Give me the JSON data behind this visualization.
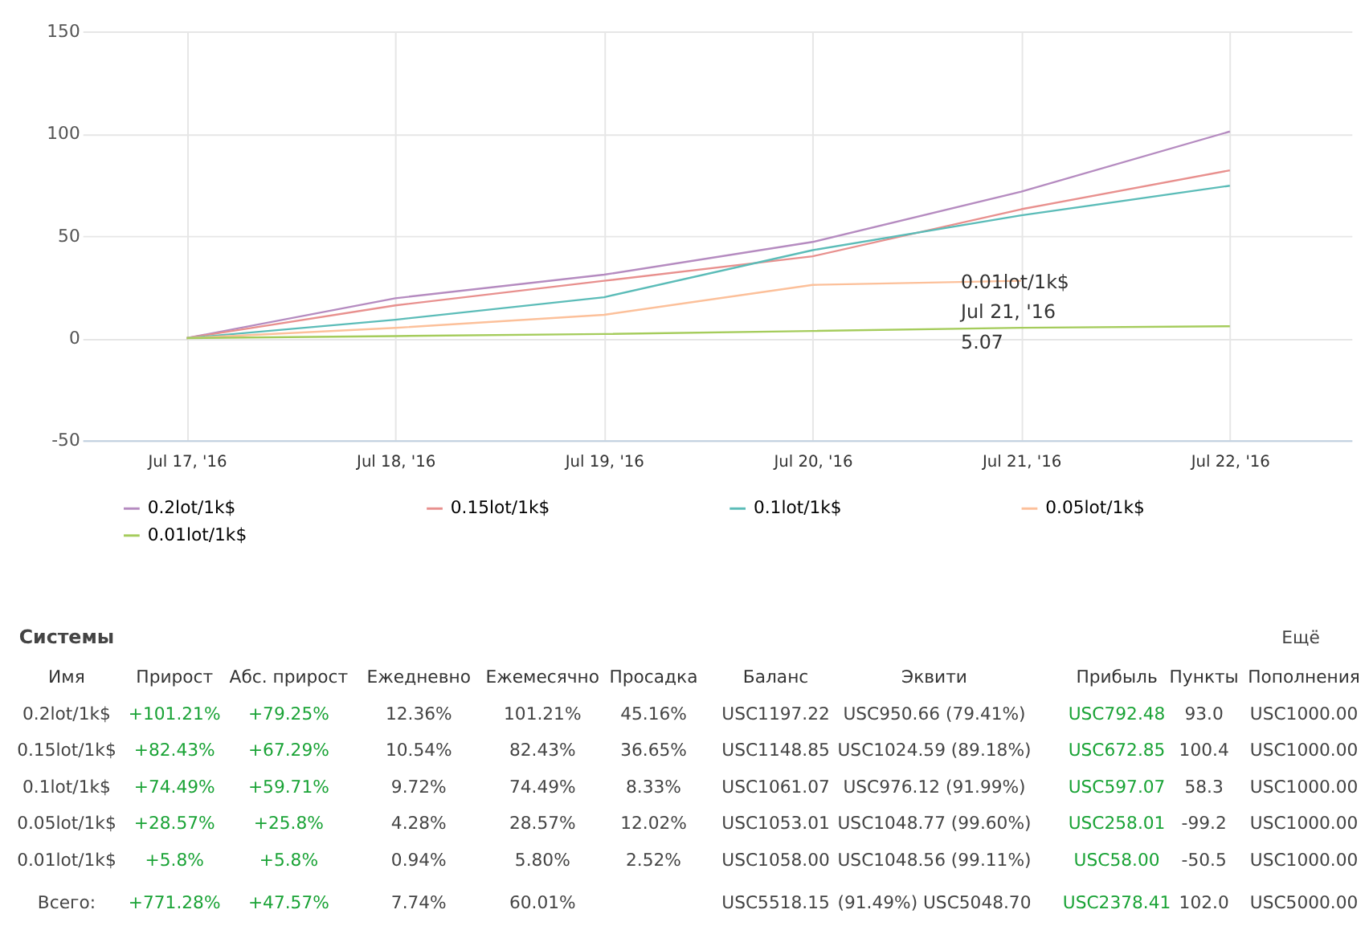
{
  "chart_data": {
    "type": "line",
    "x": [
      "2016-07-17",
      "2016-07-18",
      "2016-07-19",
      "2016-07-20",
      "2016-07-21",
      "2016-07-22"
    ],
    "series": [
      {
        "name": "0.2lot/1k$",
        "color": "#b58bc0",
        "values": [
          0,
          19.5,
          31,
          47,
          71.6,
          101
        ]
      },
      {
        "name": "0.15lot/1k$",
        "color": "#e8908e",
        "values": [
          0,
          16,
          28,
          40,
          63,
          82
        ]
      },
      {
        "name": "0.1lot/1k$",
        "color": "#5bbcb8",
        "values": [
          0,
          9,
          20,
          43,
          60,
          74.5
        ]
      },
      {
        "name": "0.05lot/1k$",
        "color": "#fcc09a",
        "values": [
          0,
          5,
          11.4,
          26,
          28,
          null
        ]
      },
      {
        "name": "0.01lot/1k$",
        "color": "#a5cc5c",
        "values": [
          0,
          1,
          2,
          3.5,
          5.07,
          5.8
        ]
      }
    ],
    "xlim": [
      "2016-07-16T12:00",
      "2016-07-22T14:00"
    ],
    "xticks": [
      {
        "value": "2016-07-17",
        "label": "Jul 17, '16"
      },
      {
        "value": "2016-07-18",
        "label": "Jul 18, '16"
      },
      {
        "value": "2016-07-19",
        "label": "Jul 19, '16"
      },
      {
        "value": "2016-07-20",
        "label": "Jul 20, '16"
      },
      {
        "value": "2016-07-21",
        "label": "Jul 21, '16"
      },
      {
        "value": "2016-07-22",
        "label": "Jul 22, '16"
      }
    ],
    "ylim": [
      -50,
      150
    ],
    "yticks": [
      -50,
      0,
      50,
      100,
      150
    ],
    "grid": true,
    "legend": "bottom",
    "marker": "none",
    "line_style": "solid",
    "annotations": [
      {
        "text": "0.01lot/1k$\nJul 21, '16\n5.07",
        "x": "2016-07-21",
        "y": 5.07
      },
      "Системы",
      "Ещё",
      "Имя",
      "Прирост",
      "Абс. прирост",
      "Ежедневно",
      "Ежемесячно",
      "Просадка",
      "Баланс",
      "Эквити",
      "Прибыль",
      "Пункты",
      "Пополнения",
      "0.2lot/1k$",
      "+101.21%",
      "+79.25%",
      "12.36%",
      "101.21%",
      "45.16%",
      "USC1197.22",
      "USC950.66 (79.41%)",
      "USC792.48",
      "93.0",
      "USC1000.00",
      "0.15lot/1k$",
      "+82.43%",
      "+67.29%",
      "10.54%",
      "82.43%",
      "36.65%",
      "USC1148.85",
      "USC1024.59 (89.18%)",
      "USC672.85",
      "100.4",
      "USC1000.00",
      "0.1lot/1k$",
      "+74.49%",
      "+59.71%",
      "9.72%",
      "74.49%",
      "8.33%",
      "USC1061.07",
      "USC976.12 (91.99%)",
      "USC597.07",
      "58.3",
      "USC1000.00",
      "0.05lot/1k$",
      "+28.57%",
      "+25.8%",
      "4.28%",
      "28.57%",
      "12.02%",
      "USC1053.01",
      "USC1048.77 (99.60%)",
      "USC258.01",
      "-99.2",
      "USC1000.00",
      "0.01lot/1k$",
      "+5.8%",
      "+5.8%",
      "0.94%",
      "5.80%",
      "2.52%",
      "USC1058.00",
      "USC1048.56 (99.11%)",
      "USC58.00",
      "-50.5",
      "USC1000.00",
      "Всего:",
      "+771.28%",
      "+47.57%",
      "7.74%",
      "60.01%",
      null,
      "USC5518.15",
      "(91.49%) USC5048.70",
      "USC2378.41",
      "102.0",
      "USC5000.00"
    ]
  }
}
